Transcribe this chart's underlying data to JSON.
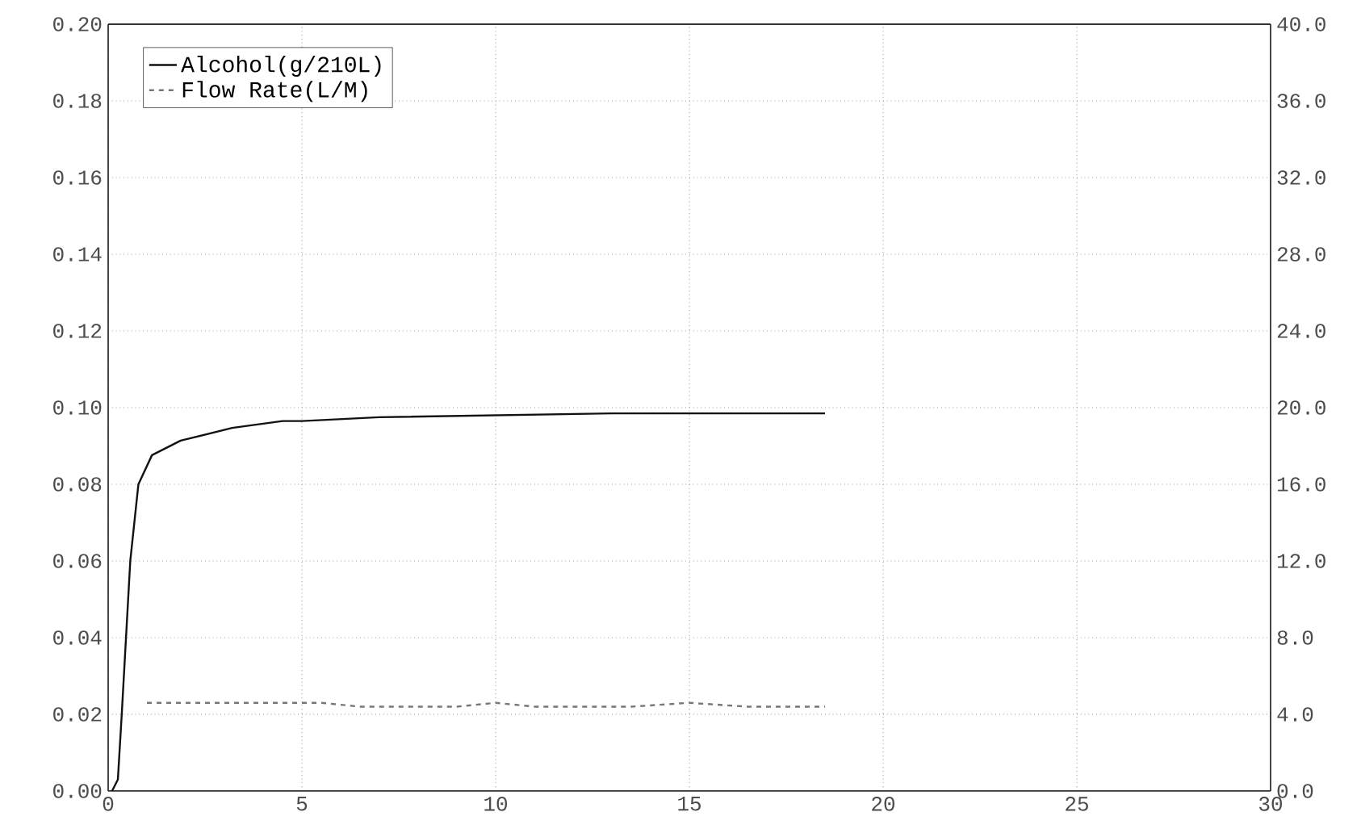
{
  "chart_data": {
    "type": "line",
    "xlim": [
      0,
      30
    ],
    "xticks": [
      0,
      5,
      10,
      15,
      20,
      25,
      30
    ],
    "ylim": [
      0,
      0.2
    ],
    "yticks": [
      {
        "value": 0,
        "label": "0.00"
      },
      {
        "value": 0.02,
        "label": "0.02"
      },
      {
        "value": 0.04,
        "label": "0.04"
      },
      {
        "value": 0.06,
        "label": "0.06"
      },
      {
        "value": 0.08,
        "label": "0.08"
      },
      {
        "value": 0.1,
        "label": "0.10"
      },
      {
        "value": 0.12,
        "label": "0.12"
      },
      {
        "value": 0.14,
        "label": "0.14"
      },
      {
        "value": 0.16,
        "label": "0.16"
      },
      {
        "value": 0.18,
        "label": "0.18"
      },
      {
        "value": 0.2,
        "label": "0.20"
      }
    ],
    "y2lim": [
      0,
      40
    ],
    "y2ticks": [
      {
        "value": 0,
        "label": "0.0"
      },
      {
        "value": 4,
        "label": "4.0"
      },
      {
        "value": 8,
        "label": "8.0"
      },
      {
        "value": 12,
        "label": "12.0"
      },
      {
        "value": 16,
        "label": "16.0"
      },
      {
        "value": 20,
        "label": "20.0"
      },
      {
        "value": 24,
        "label": "24.0"
      },
      {
        "value": 28,
        "label": "28.0"
      },
      {
        "value": 32,
        "label": "32.0"
      },
      {
        "value": 36,
        "label": "36.0"
      },
      {
        "value": 40,
        "label": "40.0"
      }
    ],
    "grid": true,
    "legend": "top left",
    "series": [
      {
        "name": "Alcohol(g/210L)",
        "color": "#111111",
        "line_style": "solid",
        "x": [
          0.1,
          0.25,
          0.35,
          0.57,
          0.78,
          1.13,
          1.87,
          3.2,
          4.5,
          5,
          7,
          10,
          13,
          15,
          18.5
        ],
        "values": [
          0,
          0.003,
          0.02,
          0.06,
          0.08,
          0.0876,
          0.0914,
          0.0947,
          0.0965,
          0.0965,
          0.0975,
          0.098,
          0.0985,
          0.0985,
          0.0985
        ]
      },
      {
        "name": "Flow Rate(L/M)",
        "color": "#777777",
        "line_style": "dashed",
        "axis": "y2",
        "x": [
          1,
          3,
          5.5,
          6.5,
          9,
          10,
          11,
          13.5,
          15,
          16.5,
          18.5
        ],
        "values": [
          4.6,
          4.6,
          4.6,
          4.4,
          4.4,
          4.6,
          4.4,
          4.4,
          4.6,
          4.4,
          4.4
        ]
      }
    ]
  }
}
